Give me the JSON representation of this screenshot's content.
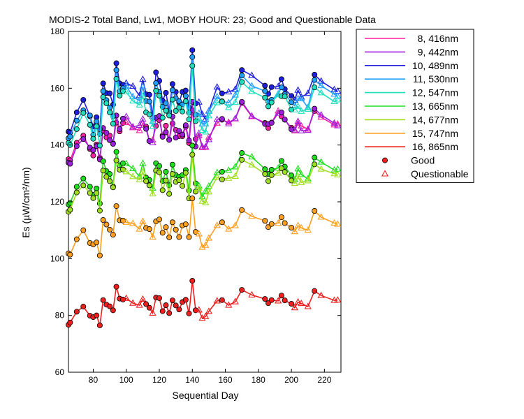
{
  "chart_data": {
    "type": "line",
    "title": "MODIS-2 Total Band,  Lw1, MOBY HOUR: 23;  Good and Questionable Data",
    "xlabel": "Sequential Day",
    "ylabel": "Es (µW/cm²/nm)",
    "xlim": [
      65,
      230
    ],
    "ylim": [
      60,
      180
    ],
    "xticks": [
      80,
      100,
      120,
      140,
      160,
      180,
      200,
      220
    ],
    "yticks": [
      60,
      80,
      100,
      120,
      140,
      160,
      180
    ],
    "grid": false,
    "legend_position": "right",
    "marker_legend": {
      "good": "Good",
      "questionable": "Questionable"
    },
    "x": [
      65,
      66,
      70,
      74,
      78,
      80,
      82,
      84,
      86,
      88,
      90,
      92,
      94,
      96,
      98,
      100,
      104,
      108,
      110,
      112,
      114,
      116,
      118,
      120,
      122,
      124,
      126,
      128,
      130,
      132,
      134,
      136,
      138,
      140,
      142,
      144,
      146,
      148,
      150,
      155,
      158,
      162,
      166,
      170,
      176,
      184,
      186,
      188,
      192,
      194,
      196,
      200,
      202,
      204,
      206,
      210,
      214,
      218,
      226,
      228
    ],
    "good": [
      true,
      true,
      true,
      true,
      true,
      true,
      true,
      true,
      true,
      true,
      true,
      true,
      true,
      true,
      true,
      false,
      false,
      false,
      false,
      true,
      true,
      false,
      true,
      true,
      true,
      true,
      true,
      true,
      true,
      true,
      true,
      true,
      true,
      true,
      true,
      false,
      false,
      false,
      false,
      false,
      true,
      false,
      false,
      true,
      false,
      true,
      true,
      true,
      false,
      true,
      true,
      true,
      false,
      false,
      false,
      false,
      true,
      false,
      false,
      false
    ],
    "series": [
      {
        "name": "8, 416nm",
        "color": "#ff1f9f",
        "values": [
          135.0,
          134.6,
          140.8,
          143.3,
          138.6,
          136.3,
          140.2,
          135.5,
          144.9,
          142.7,
          143.3,
          140.6,
          147.9,
          144.8,
          147.8,
          147.9,
          146.1,
          145.1,
          147.7,
          146.5,
          141.4,
          141.8,
          146.7,
          148.8,
          143.4,
          146.8,
          141.9,
          147.6,
          145.3,
          143.1,
          143.1,
          146.4,
          140.7,
          152.3,
          142.1,
          143.3,
          139.1,
          139.2,
          142.8,
          147.7,
          148.9,
          148.0,
          149.2,
          154.8,
          150.0,
          147.8,
          146.0,
          147.9,
          152.0,
          150.1,
          148.9,
          146.1,
          145.0,
          147.6,
          146.7,
          145.6,
          152.0,
          149.8,
          147.1,
          147.4
        ]
      },
      {
        "name": "9, 442nm",
        "color": "#9f1fdf",
        "values": [
          133.8,
          133.4,
          139.6,
          142.1,
          139.1,
          138.2,
          139.6,
          134.9,
          146.0,
          144.3,
          141.7,
          140.4,
          150.4,
          145.6,
          149.3,
          150.0,
          146.4,
          146.9,
          149.1,
          145.7,
          141.4,
          140.8,
          149.6,
          150.2,
          142.9,
          144.5,
          141.8,
          150.0,
          142.6,
          145.0,
          143.7,
          147.0,
          141.6,
          155.2,
          139.5,
          144.1,
          139.4,
          139.4,
          141.9,
          149.0,
          149.2,
          147.5,
          149.3,
          155.2,
          150.2,
          147.4,
          147.4,
          147.8,
          151.2,
          151.5,
          149.0,
          145.5,
          145.3,
          148.3,
          145.0,
          145.2,
          152.8,
          150.6,
          147.7,
          146.8
        ]
      },
      {
        "name": "10, 489nm",
        "color": "#1f1fdf",
        "values": [
          144.7,
          144.4,
          151.5,
          155.9,
          150.1,
          146.5,
          149.8,
          145.7,
          161.7,
          158.3,
          158.2,
          154.2,
          168.8,
          161.7,
          161.2,
          161.8,
          160.7,
          157.4,
          163.1,
          157.9,
          157.7,
          150.2,
          165.6,
          162.6,
          155.6,
          158.4,
          151.9,
          161.5,
          158.7,
          155.0,
          158.7,
          159.2,
          153.3,
          173.4,
          154.6,
          155.1,
          150.8,
          149.1,
          152.0,
          160.4,
          158.2,
          158.7,
          159.6,
          166.4,
          164.5,
          160.9,
          158.0,
          160.4,
          160.6,
          163.2,
          159.7,
          157.3,
          155.8,
          159.3,
          156.9,
          158.2,
          164.8,
          162.5,
          159.5,
          158.9
        ]
      },
      {
        "name": "11, 530nm",
        "color": "#1f9fff",
        "values": [
          142.4,
          143.0,
          148.6,
          152.2,
          150.4,
          143.6,
          148.3,
          143.9,
          159.0,
          155.8,
          153.2,
          150.1,
          166.4,
          158.9,
          160.0,
          160.8,
          157.0,
          155.6,
          160.5,
          155.5,
          155.3,
          148.3,
          161.8,
          158.6,
          153.5,
          154.7,
          151.1,
          159.3,
          156.5,
          155.4,
          154.3,
          157.3,
          151.4,
          171.0,
          150.6,
          151.2,
          147.4,
          147.5,
          151.9,
          157.0,
          155.4,
          154.9,
          157.6,
          164.5,
          160.8,
          159.0,
          155.3,
          155.9,
          158.0,
          160.3,
          157.9,
          155.1,
          153.9,
          156.3,
          156.4,
          153.2,
          162.9,
          160.9,
          157.9,
          157.2
        ]
      },
      {
        "name": "12, 547nm",
        "color": "#1fdfbf",
        "values": [
          140.7,
          140.0,
          145.6,
          151.3,
          147.1,
          142.2,
          146.6,
          139.8,
          156.9,
          154.7,
          151.5,
          147.5,
          163.3,
          157.4,
          159.0,
          158.7,
          155.5,
          154.1,
          157.2,
          151.5,
          150.8,
          146.5,
          159.1,
          157.4,
          149.6,
          152.1,
          150.4,
          156.0,
          152.0,
          153.2,
          151.8,
          155.4,
          149.0,
          167.9,
          148.4,
          149.3,
          145.2,
          144.6,
          150.3,
          154.9,
          155.3,
          153.2,
          155.0,
          162.2,
          158.9,
          156.7,
          153.6,
          155.0,
          157.7,
          157.2,
          157.1,
          152.5,
          152.4,
          153.6,
          151.9,
          152.6,
          160.3,
          158.4,
          155.3,
          155.9
        ]
      },
      {
        "name": "13, 665nm",
        "color": "#1fdf1f",
        "values": [
          119.1,
          119.6,
          125.3,
          128.2,
          125.3,
          122.5,
          124.7,
          119.4,
          134.3,
          130.8,
          129.8,
          125.4,
          137.6,
          132.8,
          133.6,
          133.4,
          131.7,
          128.9,
          133.5,
          128.5,
          127.7,
          124.8,
          133.6,
          132.6,
          127.3,
          130.6,
          125.8,
          133.1,
          129.4,
          128.8,
          129.4,
          131.2,
          124.0,
          139.8,
          126.5,
          125.6,
          121.8,
          123.7,
          125.5,
          130.3,
          130.6,
          131.1,
          132.3,
          137.2,
          135.8,
          131.5,
          129.8,
          131.3,
          131.9,
          134.4,
          132.4,
          129.3,
          127.8,
          131.6,
          129.6,
          128.1,
          135.6,
          134.0,
          131.2,
          131.5
        ]
      },
      {
        "name": "14, 677nm",
        "color": "#9fdf1f",
        "values": [
          116.5,
          117.2,
          123.3,
          125.8,
          123.1,
          121.3,
          123.1,
          116.9,
          131.0,
          128.8,
          127.3,
          125.1,
          134.6,
          131.3,
          131.4,
          130.6,
          128.9,
          127.8,
          130.4,
          127.3,
          125.8,
          122.8,
          131.0,
          130.4,
          124.1,
          127.5,
          122.8,
          129.8,
          127.0,
          127.6,
          125.6,
          130.2,
          121.2,
          136.6,
          123.6,
          124.8,
          120.2,
          119.7,
          123.5,
          128.6,
          127.9,
          128.3,
          129.0,
          134.8,
          133.0,
          129.8,
          127.3,
          129.4,
          130.1,
          131.8,
          130.5,
          127.5,
          126.5,
          128.8,
          126.8,
          127.4,
          133.2,
          131.5,
          129.9,
          129.5
        ]
      },
      {
        "name": "15, 747nm",
        "color": "#ff9f1f",
        "values": [
          101.8,
          101.4,
          106.8,
          110.0,
          105.5,
          105.0,
          105.7,
          101.1,
          113.6,
          112.0,
          110.2,
          108.4,
          118.5,
          113.5,
          113.4,
          112.8,
          112.4,
          110.4,
          113.1,
          110.8,
          110.4,
          107.6,
          113.1,
          113.8,
          109.1,
          111.1,
          107.5,
          112.8,
          110.2,
          107.6,
          111.7,
          112.1,
          107.6,
          121.2,
          109.4,
          108.7,
          104.0,
          104.7,
          107.2,
          111.7,
          112.8,
          110.4,
          111.6,
          117.1,
          114.9,
          113.3,
          111.1,
          112.2,
          112.5,
          114.6,
          112.5,
          110.9,
          109.5,
          111.6,
          110.8,
          110.0,
          116.8,
          114.6,
          112.5,
          112.1
        ]
      },
      {
        "name": "16, 865nm",
        "color": "#ef1f1f",
        "values": [
          76.7,
          77.5,
          81.3,
          83.1,
          79.9,
          79.4,
          80.0,
          76.5,
          85.4,
          83.8,
          83.2,
          81.8,
          90.1,
          85.9,
          85.6,
          86.0,
          84.3,
          83.6,
          85.7,
          84.0,
          82.7,
          80.8,
          86.3,
          86.1,
          81.5,
          83.6,
          80.8,
          85.3,
          83.5,
          82.1,
          84.7,
          85.5,
          80.7,
          92.2,
          81.8,
          81.9,
          79.0,
          79.6,
          81.4,
          85.1,
          85.4,
          83.6,
          84.8,
          89.0,
          87.2,
          85.8,
          84.3,
          85.4,
          85.1,
          87.0,
          85.3,
          84.1,
          82.7,
          84.7,
          84.2,
          83.1,
          88.6,
          87.0,
          85.3,
          85.4
        ]
      }
    ]
  }
}
